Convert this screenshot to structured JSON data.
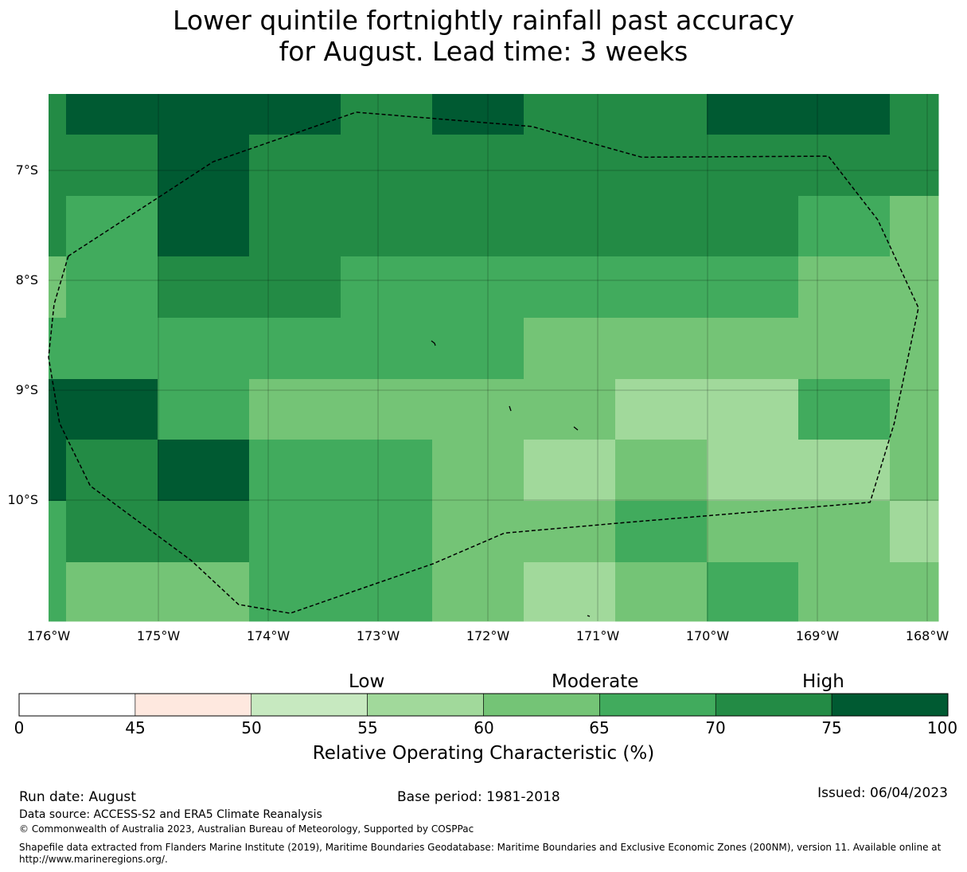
{
  "title": {
    "line1": "Lower quintile fortnightly rainfall past accuracy",
    "line2": "for August. Lead time: 3 weeks"
  },
  "map": {
    "lon_range": [
      -176.0,
      -168.0
    ],
    "lat_range": [
      -11.15,
      -6.3
    ],
    "lat_labels": [
      "7°S",
      "8°S",
      "9°S",
      "10°S"
    ],
    "lon_labels": [
      "176°W",
      "175°W",
      "174°W",
      "173°W",
      "172°W",
      "171°W",
      "170°W",
      "169°W",
      "168°W"
    ],
    "cell_colors": {
      "c5": "#c7e9c0",
      "c6": "#a1d99b",
      "c7": "#74c476",
      "c8": "#41ab5d",
      "c9": "#238b45",
      "c10": "#005a32"
    },
    "grid_rows": [
      [
        "c9",
        "c10",
        "c10",
        "c10",
        "c9",
        "c10",
        "c9",
        "c9",
        "c10",
        "c10",
        "c9"
      ],
      [
        "c9",
        "c9",
        "c10",
        "c9",
        "c9",
        "c9",
        "c9",
        "c9",
        "c9",
        "c9",
        "c9"
      ],
      [
        "c9",
        "c8",
        "c10",
        "c9",
        "c9",
        "c9",
        "c9",
        "c9",
        "c9",
        "c8",
        "c7"
      ],
      [
        "c7",
        "c8",
        "c9",
        "c9",
        "c8",
        "c8",
        "c8",
        "c8",
        "c8",
        "c7",
        "c7"
      ],
      [
        "c8",
        "c8",
        "c8",
        "c8",
        "c8",
        "c8",
        "c7",
        "c7",
        "c7",
        "c7",
        "c7"
      ],
      [
        "c10",
        "c10",
        "c8",
        "c7",
        "c7",
        "c7",
        "c7",
        "c6",
        "c6",
        "c8",
        "c7"
      ],
      [
        "c10",
        "c9",
        "c10",
        "c8",
        "c8",
        "c7",
        "c6",
        "c7",
        "c6",
        "c6",
        "c7"
      ],
      [
        "c8",
        "c9",
        "c9",
        "c8",
        "c8",
        "c7",
        "c7",
        "c8",
        "c7",
        "c7",
        "c6"
      ],
      [
        "c8",
        "c7",
        "c7",
        "c8",
        "c8",
        "c7",
        "c6",
        "c7",
        "c8",
        "c7",
        "c7"
      ]
    ],
    "eez_boundary": [
      [
        -175.82,
        -7.78
      ],
      [
        -175.95,
        -8.22
      ],
      [
        -176.0,
        -8.7
      ],
      [
        -175.9,
        -9.3
      ],
      [
        -175.62,
        -9.87
      ],
      [
        -174.7,
        -10.55
      ],
      [
        -174.27,
        -10.95
      ],
      [
        -173.8,
        -11.03
      ],
      [
        -172.5,
        -10.58
      ],
      [
        -171.85,
        -10.3
      ],
      [
        -170.7,
        -10.2
      ],
      [
        -168.52,
        -10.02
      ],
      [
        -168.3,
        -9.3
      ],
      [
        -168.08,
        -8.25
      ],
      [
        -168.45,
        -7.45
      ],
      [
        -168.9,
        -6.87
      ],
      [
        -170.6,
        -6.88
      ],
      [
        -171.6,
        -6.6
      ],
      [
        -173.2,
        -6.47
      ],
      [
        -174.5,
        -6.92
      ],
      [
        -175.82,
        -7.78
      ]
    ]
  },
  "colorbar": {
    "categories": [
      "Low",
      "Moderate",
      "High"
    ],
    "bounds": [
      0,
      45,
      50,
      55,
      60,
      65,
      70,
      75,
      100
    ],
    "colors": [
      "#ffffff",
      "#fee8df",
      "#c7e9c0",
      "#a1d99b",
      "#74c476",
      "#41ab5d",
      "#238b45",
      "#005a32"
    ],
    "tick_labels": [
      "0",
      "45",
      "50",
      "55",
      "60",
      "65",
      "70",
      "75",
      "100"
    ],
    "label": "Relative Operating Characteristic (%)"
  },
  "footer": {
    "run_date": "Run date: August",
    "base_period": "Base period: 1981-2018",
    "issued": "Issued: 06/04/2023",
    "data_source": "Data source: ACCESS-S2 and ERA5 Climate Reanalysis",
    "copyright": "© Commonwealth of Australia 2023, Australian Bureau of Meteorology, Supported by COSPPac",
    "shapefile_line1": "Shapefile data extracted from Flanders Marine Institute (2019), Maritime Boundaries Geodatabase: Maritime Boundaries and Exclusive Economic Zones (200NM), version 11. Available online at",
    "shapefile_line2": "http://www.marineregions.org/."
  }
}
